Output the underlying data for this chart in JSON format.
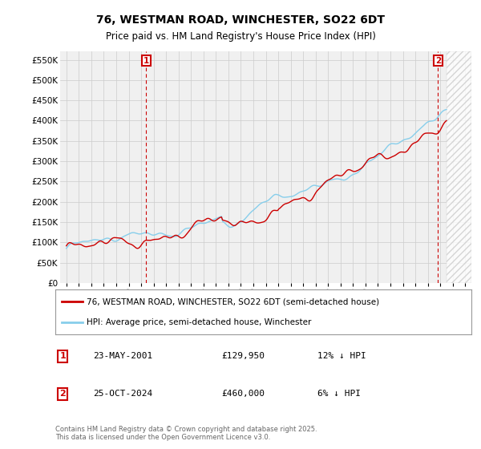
{
  "title": "76, WESTMAN ROAD, WINCHESTER, SO22 6DT",
  "subtitle": "Price paid vs. HM Land Registry's House Price Index (HPI)",
  "ylabel_ticks": [
    "£0",
    "£50K",
    "£100K",
    "£150K",
    "£200K",
    "£250K",
    "£300K",
    "£350K",
    "£400K",
    "£450K",
    "£500K",
    "£550K"
  ],
  "ylim": [
    0,
    570000
  ],
  "xlim_start": 1994.5,
  "xlim_end": 2027.5,
  "grid_color": "#cccccc",
  "bg_color": "#ffffff",
  "plot_bg_color": "#f0f0f0",
  "hpi_line_color": "#87CEEB",
  "price_line_color": "#cc0000",
  "marker1_x": 2001.39,
  "marker2_x": 2024.82,
  "legend_price": "76, WESTMAN ROAD, WINCHESTER, SO22 6DT (semi-detached house)",
  "legend_hpi": "HPI: Average price, semi-detached house, Winchester",
  "footer": "Contains HM Land Registry data © Crown copyright and database right 2025.\nThis data is licensed under the Open Government Licence v3.0.",
  "hatch_start": 2025.5
}
